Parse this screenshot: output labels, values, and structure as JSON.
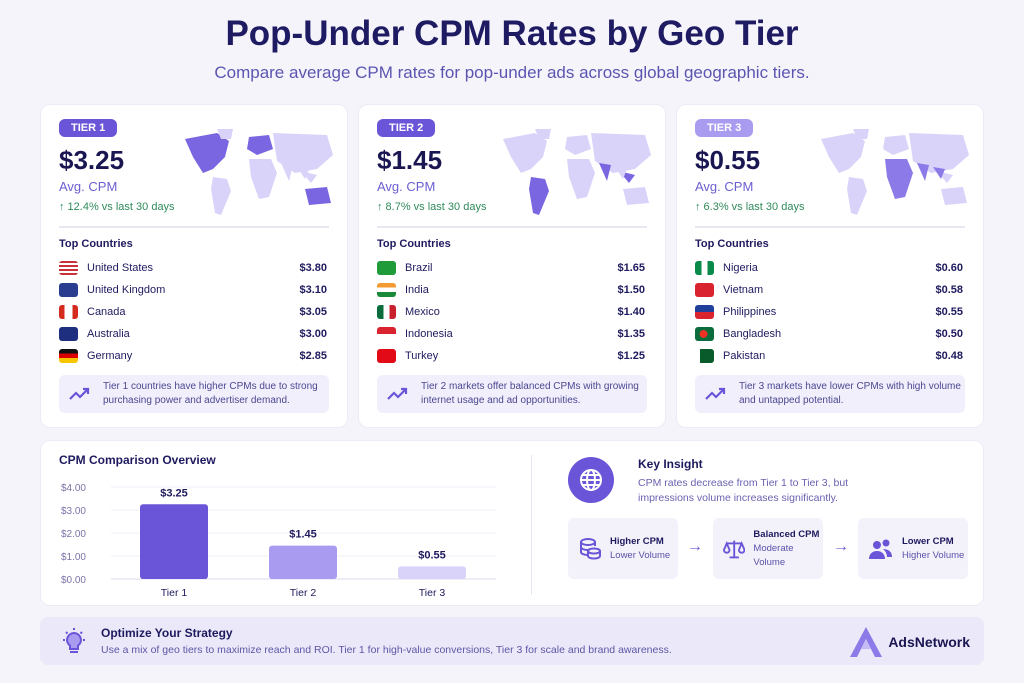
{
  "header": {
    "title": "Pop-Under CPM Rates by Geo Tier",
    "subtitle": "Compare average CPM rates for pop-under ads across global geographic tiers."
  },
  "colors": {
    "tier1": "#6a55d8",
    "tier2": "#a99cf0",
    "tier3": "#d9d3fa",
    "up": "#2f8a5a",
    "navy": "#1e1a5e"
  },
  "tiers": [
    {
      "badge": "TIER 1",
      "price": "$3.25",
      "avg_label": "Avg. CPM",
      "trend": "↑ 12.4% vs last 30 days",
      "top_label": "Top Countries",
      "countries": [
        {
          "name": "United States",
          "cpm": "$3.80",
          "flag": "us"
        },
        {
          "name": "United Kingdom",
          "cpm": "$3.10",
          "flag": "uk"
        },
        {
          "name": "Canada",
          "cpm": "$3.05",
          "flag": "ca"
        },
        {
          "name": "Australia",
          "cpm": "$3.00",
          "flag": "au"
        },
        {
          "name": "Germany",
          "cpm": "$2.85",
          "flag": "de"
        }
      ],
      "note": "Tier 1 countries have higher CPMs due to strong purchasing power and advertiser demand."
    },
    {
      "badge": "TIER 2",
      "price": "$1.45",
      "avg_label": "Avg. CPM",
      "trend": "↑ 8.7% vs last 30 days",
      "top_label": "Top Countries",
      "countries": [
        {
          "name": "Brazil",
          "cpm": "$1.65",
          "flag": "br"
        },
        {
          "name": "India",
          "cpm": "$1.50",
          "flag": "in"
        },
        {
          "name": "Mexico",
          "cpm": "$1.40",
          "flag": "mx"
        },
        {
          "name": "Indonesia",
          "cpm": "$1.35",
          "flag": "id"
        },
        {
          "name": "Turkey",
          "cpm": "$1.25",
          "flag": "tr"
        }
      ],
      "note": "Tier 2 markets offer balanced CPMs with growing internet usage and ad opportunities."
    },
    {
      "badge": "TIER 3",
      "price": "$0.55",
      "avg_label": "Avg. CPM",
      "trend": "↑ 6.3% vs last 30 days",
      "top_label": "Top Countries",
      "countries": [
        {
          "name": "Nigeria",
          "cpm": "$0.60",
          "flag": "ng"
        },
        {
          "name": "Vietnam",
          "cpm": "$0.58",
          "flag": "vn"
        },
        {
          "name": "Philippines",
          "cpm": "$0.55",
          "flag": "ph"
        },
        {
          "name": "Bangladesh",
          "cpm": "$0.50",
          "flag": "bd"
        },
        {
          "name": "Pakistan",
          "cpm": "$0.48",
          "flag": "pk"
        }
      ],
      "note": "Tier 3 markets have lower CPMs with high volume and untapped potential."
    }
  ],
  "chart_data": {
    "type": "bar",
    "title": "CPM Comparison Overview",
    "categories": [
      "Tier 1",
      "Tier 2",
      "Tier 3"
    ],
    "values": [
      3.25,
      1.45,
      0.55
    ],
    "data_labels": [
      "$3.25",
      "$1.45",
      "$0.55"
    ],
    "yticks": [
      "$0.00",
      "$1.00",
      "$2.00",
      "$3.00",
      "$4.00"
    ],
    "ylim": [
      0,
      4
    ],
    "grid": true,
    "xlabel": "",
    "ylabel": ""
  },
  "insight": {
    "title": "Key Insight",
    "text": "CPM rates decrease from Tier 1 to Tier 3, but impressions volume increases significantly.",
    "steps": [
      {
        "title": "Higher CPM",
        "sub": "Lower Volume",
        "icon": "coins-icon"
      },
      {
        "title": "Balanced CPM",
        "sub": "Moderate Volume",
        "icon": "scale-icon"
      },
      {
        "title": "Lower CPM",
        "sub": "Higher Volume",
        "icon": "users-icon"
      }
    ]
  },
  "footer": {
    "title": "Optimize Your Strategy",
    "text": "Use a mix of geo tiers to maximize reach and ROI. Tier 1 for high-value conversions, Tier 3 for scale and brand awareness.",
    "brand": "AdsNetwork"
  }
}
